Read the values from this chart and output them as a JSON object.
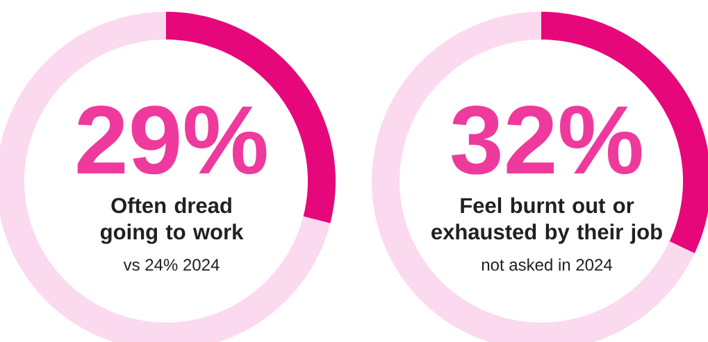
{
  "chart_data": [
    {
      "type": "donut",
      "title": "Often dread going to work",
      "categories": [
        null,
        null
      ],
      "values": [
        29,
        71
      ],
      "colors": [
        "#e6077b",
        "#fbd9ee"
      ],
      "value_labels": [
        "29%",
        null
      ],
      "annotations": [
        "vs 24% 2024"
      ]
    },
    {
      "type": "donut",
      "title": "Feel burnt out or exhausted by their job",
      "categories": [
        null,
        null
      ],
      "values": [
        32,
        68
      ],
      "colors": [
        "#e6077b",
        "#fbd9ee"
      ],
      "value_labels": [
        "32%",
        null
      ],
      "annotations": [
        "not asked in 2024"
      ]
    }
  ]
}
